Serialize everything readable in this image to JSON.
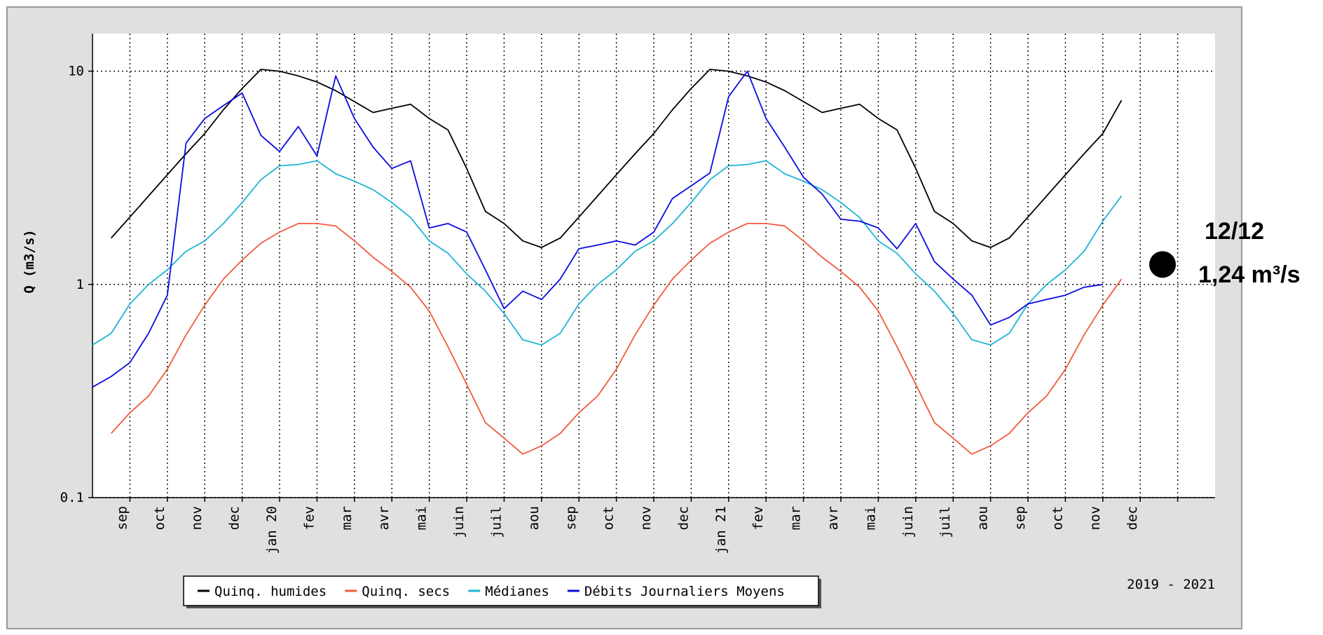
{
  "chart_data": {
    "type": "line",
    "y_label": "Q (m3/s)",
    "period_label": "2019 - 2021",
    "log_scale": true,
    "grid": true,
    "ylim": [
      0.1,
      15
    ],
    "yticks": [
      0.1,
      1,
      10
    ],
    "categories": [
      null,
      null,
      "sep",
      null,
      "oct",
      null,
      "nov",
      null,
      "dec",
      null,
      "jan 20",
      null,
      "fev",
      null,
      "mar",
      null,
      "avr",
      null,
      "mai",
      null,
      "juin",
      null,
      "juil",
      null,
      "aou",
      null,
      "sep",
      null,
      "oct",
      null,
      "nov",
      null,
      "dec",
      null,
      "jan 21",
      null,
      "fev",
      null,
      "mar",
      null,
      "avr",
      null,
      "mai",
      null,
      "juin",
      null,
      "juil",
      null,
      "aou",
      null,
      "sep",
      null,
      "oct",
      null,
      "nov",
      null,
      "dec",
      null,
      null,
      null,
      null
    ],
    "series": [
      {
        "name": "Quinq. humides",
        "color": "#000000",
        "values": [
          null,
          1.65,
          2.07,
          2.6,
          3.27,
          4.1,
          5.1,
          6.6,
          8.3,
          10.2,
          10,
          9.5,
          8.9,
          8.1,
          7.2,
          6.4,
          6.7,
          7.0,
          6.0,
          5.3,
          3.5,
          2.2,
          1.93,
          1.6,
          1.49,
          1.65,
          2.07,
          2.6,
          3.27,
          4.1,
          5.1,
          6.6,
          8.3,
          10.2,
          10,
          9.5,
          8.9,
          8.1,
          7.2,
          6.4,
          6.7,
          7.0,
          6.0,
          5.3,
          3.5,
          2.2,
          1.93,
          1.6,
          1.49,
          1.65,
          2.07,
          2.6,
          3.27,
          4.1,
          5.1,
          7.3,
          null,
          null,
          null,
          null,
          null
        ]
      },
      {
        "name": "Quinq. secs",
        "color": "#f25a3c",
        "values": [
          null,
          0.2,
          0.25,
          0.3,
          0.4,
          0.58,
          0.8,
          1.06,
          1.3,
          1.56,
          1.76,
          1.93,
          1.93,
          1.88,
          1.6,
          1.34,
          1.15,
          0.97,
          0.75,
          0.51,
          0.34,
          0.225,
          0.19,
          0.16,
          0.175,
          0.2,
          0.25,
          0.3,
          0.4,
          0.58,
          0.8,
          1.06,
          1.3,
          1.56,
          1.76,
          1.93,
          1.93,
          1.88,
          1.6,
          1.34,
          1.15,
          0.97,
          0.75,
          0.51,
          0.34,
          0.225,
          0.19,
          0.16,
          0.175,
          0.2,
          0.25,
          0.3,
          0.4,
          0.58,
          0.8,
          1.06,
          null,
          null,
          null,
          null,
          null
        ]
      },
      {
        "name": "Médianes",
        "color": "#1fb5d4",
        "values": [
          0.52,
          0.59,
          0.81,
          1.0,
          1.17,
          1.43,
          1.6,
          1.93,
          2.42,
          3.1,
          3.6,
          3.65,
          3.8,
          3.3,
          3.05,
          2.78,
          2.42,
          2.06,
          1.6,
          1.4,
          1.12,
          0.93,
          0.73,
          0.55,
          0.52,
          0.59,
          0.81,
          1.0,
          1.17,
          1.43,
          1.6,
          1.93,
          2.42,
          3.1,
          3.6,
          3.65,
          3.8,
          3.3,
          3.05,
          2.78,
          2.42,
          2.06,
          1.6,
          1.4,
          1.12,
          0.93,
          0.73,
          0.55,
          0.52,
          0.59,
          0.81,
          1.0,
          1.17,
          1.43,
          1.98,
          2.6,
          null,
          null,
          null,
          null,
          null
        ]
      },
      {
        "name": "Débits Journaliers Moyens",
        "color": "#0a0ae0",
        "values": [
          0.33,
          0.37,
          0.43,
          0.59,
          0.89,
          4.6,
          6.0,
          6.9,
          7.9,
          5.0,
          4.2,
          5.5,
          4.0,
          9.5,
          6.0,
          4.4,
          3.5,
          3.8,
          1.84,
          1.93,
          1.76,
          1.17,
          0.77,
          0.93,
          0.85,
          1.06,
          1.47,
          1.53,
          1.6,
          1.53,
          1.76,
          2.53,
          2.9,
          3.33,
          7.6,
          10,
          6.0,
          4.4,
          3.18,
          2.65,
          2.02,
          1.98,
          1.84,
          1.47,
          1.93,
          1.28,
          1.06,
          0.89,
          0.645,
          0.7,
          0.81,
          0.85,
          0.89,
          0.97,
          1.0,
          null,
          null,
          null,
          null,
          null,
          null
        ]
      }
    ],
    "annotation": {
      "date": "12/12",
      "value": 1.24,
      "value_label": "1,24 m³/s"
    }
  }
}
